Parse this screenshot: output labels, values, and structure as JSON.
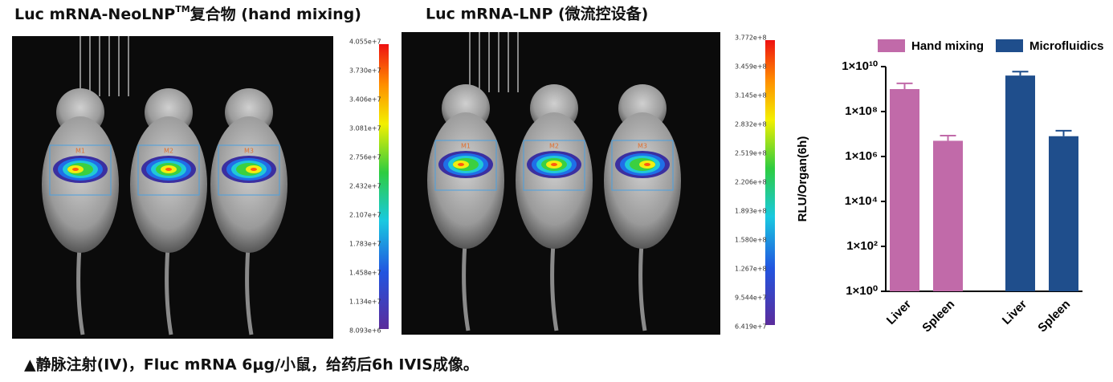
{
  "panels": [
    {
      "title": "Luc mRNA-NeoLNP",
      "title_mark": "TM",
      "title_rest": "复合物 (hand mixing)",
      "roi_labels": [
        "M1",
        "M2",
        "M3"
      ],
      "colorbar_ticks": [
        "4.055e+7",
        "3.730e+7",
        "3.406e+7",
        "3.081e+7",
        "2.756e+7",
        "2.432e+7",
        "2.107e+7",
        "1.783e+7",
        "1.458e+7",
        "1.134e+7",
        "8.093e+6"
      ]
    },
    {
      "title": "Luc mRNA-LNP (微流控设备)",
      "roi_labels": [
        "M1",
        "M2",
        "M3"
      ],
      "colorbar_ticks": [
        "3.772e+8",
        "3.459e+8",
        "3.145e+8",
        "2.832e+8",
        "2.519e+8",
        "2.206e+8",
        "1.893e+8",
        "1.580e+8",
        "1.267e+8",
        "9.544e+7",
        "6.419e+7"
      ]
    }
  ],
  "chart_data": {
    "type": "bar",
    "y_label": "RLU/Organ(6h)",
    "categories": [
      "Liver",
      "Spleen"
    ],
    "series": [
      {
        "name": "Hand mixing",
        "color": "#c16aa9",
        "values": [
          1000000000,
          5000000
        ],
        "errors": [
          800000000,
          3500000
        ]
      },
      {
        "name": "Microfluidics",
        "color": "#1f4e8c",
        "values": [
          4000000000,
          8000000
        ],
        "errors": [
          2000000000,
          6000000
        ]
      }
    ],
    "ylim": [
      1,
      10000000000
    ],
    "log_y": true,
    "yticks": [
      {
        "value": 1,
        "label": "1×10⁰"
      },
      {
        "value": 100,
        "label": "1×10²"
      },
      {
        "value": 10000,
        "label": "1×10⁴"
      },
      {
        "value": 1000000,
        "label": "1×10⁶"
      },
      {
        "value": 100000000,
        "label": "1×10⁸"
      },
      {
        "value": 10000000000,
        "label": "1×10¹⁰"
      }
    ],
    "legend": "top"
  },
  "caption": "▲静脉注射(IV)，Fluc mRNA 6μg/小鼠，给药后6h IVIS成像。"
}
